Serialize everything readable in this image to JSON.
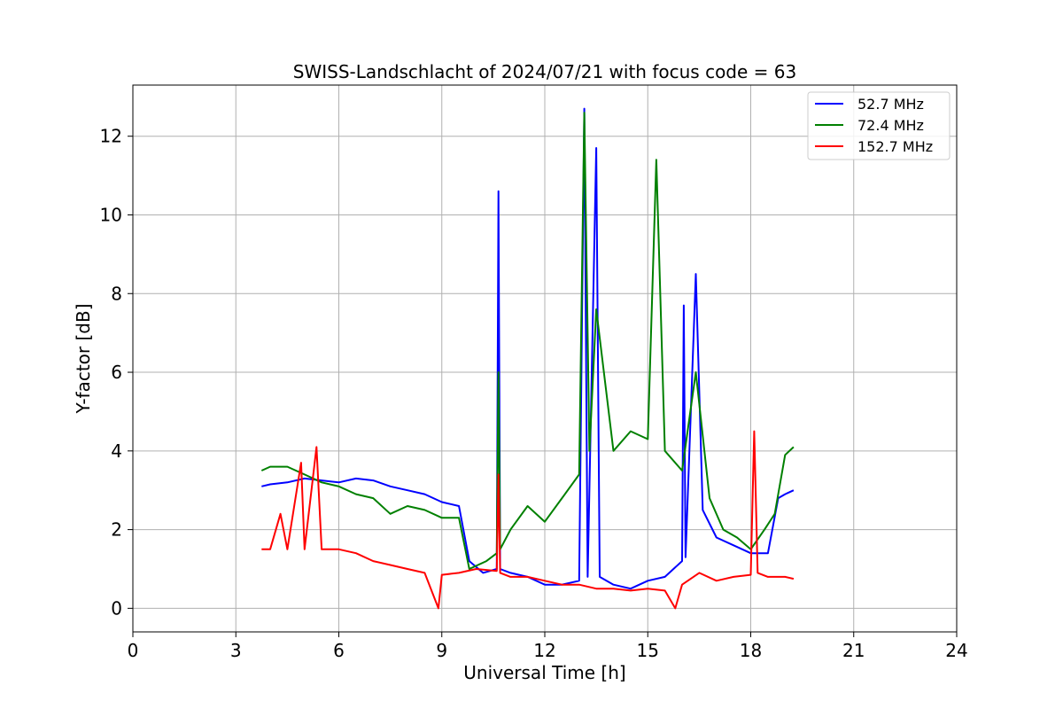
{
  "chart_data": {
    "type": "line",
    "title": "SWISS-Landschlacht of 2024/07/21 with focus code = 63",
    "xlabel": "Universal Time [h]",
    "ylabel": "Y-factor [dB]",
    "xlim": [
      0,
      24
    ],
    "ylim": [
      -0.6,
      13.3
    ],
    "xticks": [
      0,
      3,
      6,
      9,
      12,
      15,
      18,
      21,
      24
    ],
    "yticks": [
      0,
      2,
      4,
      6,
      8,
      10,
      12
    ],
    "grid": true,
    "legend_position": "top-right",
    "series": [
      {
        "name": " 52.7 MHz",
        "color": "#0000ff",
        "points": [
          [
            3.75,
            3.1
          ],
          [
            4.0,
            3.15
          ],
          [
            4.5,
            3.2
          ],
          [
            5.0,
            3.3
          ],
          [
            5.5,
            3.25
          ],
          [
            6.0,
            3.2
          ],
          [
            6.5,
            3.3
          ],
          [
            7.0,
            3.25
          ],
          [
            7.5,
            3.1
          ],
          [
            8.0,
            3.0
          ],
          [
            8.5,
            2.9
          ],
          [
            9.0,
            2.7
          ],
          [
            9.5,
            2.6
          ],
          [
            9.8,
            1.2
          ],
          [
            10.2,
            0.9
          ],
          [
            10.6,
            1.0
          ],
          [
            10.65,
            10.6
          ],
          [
            10.7,
            1.0
          ],
          [
            11.0,
            0.9
          ],
          [
            11.5,
            0.8
          ],
          [
            12.0,
            0.6
          ],
          [
            12.5,
            0.6
          ],
          [
            13.0,
            0.7
          ],
          [
            13.15,
            12.7
          ],
          [
            13.25,
            0.8
          ],
          [
            13.5,
            11.7
          ],
          [
            13.6,
            0.8
          ],
          [
            14.0,
            0.6
          ],
          [
            14.5,
            0.5
          ],
          [
            15.0,
            0.7
          ],
          [
            15.5,
            0.8
          ],
          [
            16.0,
            1.2
          ],
          [
            16.05,
            7.7
          ],
          [
            16.1,
            1.3
          ],
          [
            16.4,
            8.5
          ],
          [
            16.6,
            2.5
          ],
          [
            17.0,
            1.8
          ],
          [
            17.5,
            1.6
          ],
          [
            18.0,
            1.4
          ],
          [
            18.5,
            1.4
          ],
          [
            18.8,
            2.8
          ],
          [
            19.0,
            2.9
          ],
          [
            19.25,
            3.0
          ]
        ]
      },
      {
        "name": " 72.4 MHz",
        "color": "#008000",
        "points": [
          [
            3.75,
            3.5
          ],
          [
            4.0,
            3.6
          ],
          [
            4.5,
            3.6
          ],
          [
            5.0,
            3.4
          ],
          [
            5.5,
            3.2
          ],
          [
            6.0,
            3.1
          ],
          [
            6.5,
            2.9
          ],
          [
            7.0,
            2.8
          ],
          [
            7.5,
            2.4
          ],
          [
            8.0,
            2.6
          ],
          [
            8.5,
            2.5
          ],
          [
            9.0,
            2.3
          ],
          [
            9.5,
            2.3
          ],
          [
            9.8,
            1.0
          ],
          [
            10.3,
            1.2
          ],
          [
            10.6,
            1.4
          ],
          [
            10.65,
            6.0
          ],
          [
            10.7,
            1.5
          ],
          [
            11.0,
            2.0
          ],
          [
            11.5,
            2.6
          ],
          [
            12.0,
            2.2
          ],
          [
            12.5,
            2.8
          ],
          [
            13.0,
            3.4
          ],
          [
            13.15,
            12.6
          ],
          [
            13.3,
            4.0
          ],
          [
            13.5,
            7.6
          ],
          [
            14.0,
            4.0
          ],
          [
            14.5,
            4.5
          ],
          [
            15.0,
            4.3
          ],
          [
            15.25,
            11.4
          ],
          [
            15.5,
            4.0
          ],
          [
            16.0,
            3.5
          ],
          [
            16.4,
            6.0
          ],
          [
            16.8,
            2.8
          ],
          [
            17.2,
            2.0
          ],
          [
            17.6,
            1.8
          ],
          [
            18.0,
            1.5
          ],
          [
            18.4,
            2.0
          ],
          [
            18.7,
            2.4
          ],
          [
            19.0,
            3.9
          ],
          [
            19.25,
            4.1
          ]
        ]
      },
      {
        "name": "152.7 MHz",
        "color": "#ff0000",
        "points": [
          [
            3.75,
            1.5
          ],
          [
            4.0,
            1.5
          ],
          [
            4.3,
            2.4
          ],
          [
            4.5,
            1.5
          ],
          [
            4.9,
            3.7
          ],
          [
            5.0,
            1.5
          ],
          [
            5.35,
            4.1
          ],
          [
            5.5,
            1.5
          ],
          [
            6.0,
            1.5
          ],
          [
            6.5,
            1.4
          ],
          [
            7.0,
            1.2
          ],
          [
            7.5,
            1.1
          ],
          [
            8.0,
            1.0
          ],
          [
            8.5,
            0.9
          ],
          [
            8.9,
            0.0
          ],
          [
            9.0,
            0.85
          ],
          [
            9.5,
            0.9
          ],
          [
            10.0,
            1.0
          ],
          [
            10.6,
            0.95
          ],
          [
            10.65,
            3.4
          ],
          [
            10.7,
            0.9
          ],
          [
            11.0,
            0.8
          ],
          [
            11.5,
            0.8
          ],
          [
            12.0,
            0.7
          ],
          [
            12.5,
            0.6
          ],
          [
            13.0,
            0.6
          ],
          [
            13.5,
            0.5
          ],
          [
            14.0,
            0.5
          ],
          [
            14.5,
            0.45
          ],
          [
            15.0,
            0.5
          ],
          [
            15.5,
            0.45
          ],
          [
            15.8,
            0.0
          ],
          [
            16.0,
            0.6
          ],
          [
            16.5,
            0.9
          ],
          [
            17.0,
            0.7
          ],
          [
            17.5,
            0.8
          ],
          [
            18.0,
            0.85
          ],
          [
            18.1,
            4.5
          ],
          [
            18.2,
            0.9
          ],
          [
            18.5,
            0.8
          ],
          [
            19.0,
            0.8
          ],
          [
            19.25,
            0.75
          ]
        ]
      }
    ]
  }
}
